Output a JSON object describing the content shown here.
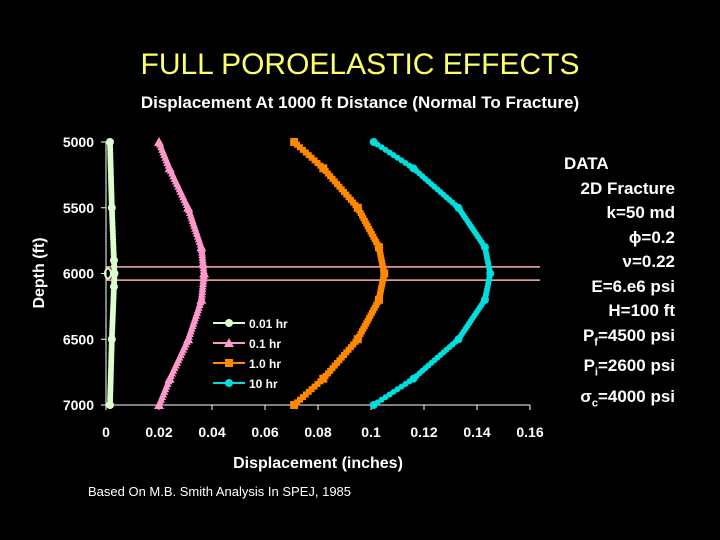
{
  "title": "FULL POROELASTIC EFFECTS",
  "subtitle": "Displacement At 1000 ft Distance (Normal To Fracture)",
  "footnote": "Based On M.B. Smith Analysis In SPEJ, 1985",
  "data_panel": {
    "heading": "DATA",
    "lines": [
      {
        "main": "2D Fracture",
        "sub": "",
        "rest": ""
      },
      {
        "main": "k=50 md",
        "sub": "",
        "rest": ""
      },
      {
        "main": "ϕ=0.2",
        "sub": "",
        "rest": ""
      },
      {
        "main": "ν=0.22",
        "sub": "",
        "rest": ""
      },
      {
        "main": "E=6.e6 psi",
        "sub": "",
        "rest": ""
      },
      {
        "main": "H=100 ft",
        "sub": "",
        "rest": ""
      },
      {
        "main": "P",
        "sub": "f",
        "rest": "=4500 psi"
      },
      {
        "main": "P",
        "sub": "i",
        "rest": "=2600 psi"
      },
      {
        "main": "σ",
        "sub": "c",
        "rest": "=4000 psi"
      }
    ]
  },
  "chart_data": {
    "type": "line",
    "xlabel": "Displacement (inches)",
    "ylabel": "Depth (ft)",
    "xlim": [
      0,
      0.16
    ],
    "ylim": [
      5000,
      7000
    ],
    "y_inverted": true,
    "x_ticks": [
      "0",
      "0.02",
      "0.04",
      "0.06",
      "0.08",
      "0.1",
      "0.12",
      "0.14",
      "0.16"
    ],
    "y_ticks": [
      "5000",
      "5500",
      "6000",
      "6500",
      "7000"
    ],
    "legend_position": "center",
    "reference_lines_depth": [
      5950,
      6050
    ],
    "grid": false,
    "series": [
      {
        "name": "0.01 hr",
        "color": "#ddffcc",
        "marker": "circle",
        "points": [
          [
            0.0015,
            5000
          ],
          [
            0.0022,
            5500
          ],
          [
            0.003,
            5900
          ],
          [
            0.0032,
            6000
          ],
          [
            0.003,
            6100
          ],
          [
            0.0022,
            6500
          ],
          [
            0.0015,
            7000
          ]
        ]
      },
      {
        "name": "0.1 hr",
        "color": "#ff99cc",
        "marker": "triangle",
        "points": [
          [
            0.02,
            5000
          ],
          [
            0.024,
            5200
          ],
          [
            0.031,
            5500
          ],
          [
            0.036,
            5800
          ],
          [
            0.037,
            6000
          ],
          [
            0.036,
            6200
          ],
          [
            0.031,
            6500
          ],
          [
            0.024,
            6800
          ],
          [
            0.02,
            7000
          ]
        ]
      },
      {
        "name": "1.0 hr",
        "color": "#ff8800",
        "marker": "square",
        "points": [
          [
            0.071,
            5000
          ],
          [
            0.082,
            5200
          ],
          [
            0.095,
            5500
          ],
          [
            0.103,
            5800
          ],
          [
            0.105,
            6000
          ],
          [
            0.103,
            6200
          ],
          [
            0.095,
            6500
          ],
          [
            0.082,
            6800
          ],
          [
            0.071,
            7000
          ]
        ]
      },
      {
        "name": "10 hr",
        "color": "#00dddd",
        "marker": "circle",
        "points": [
          [
            0.101,
            5000
          ],
          [
            0.116,
            5200
          ],
          [
            0.133,
            5500
          ],
          [
            0.143,
            5800
          ],
          [
            0.145,
            6000
          ],
          [
            0.143,
            6200
          ],
          [
            0.133,
            6500
          ],
          [
            0.116,
            6800
          ],
          [
            0.101,
            7000
          ]
        ]
      }
    ]
  }
}
